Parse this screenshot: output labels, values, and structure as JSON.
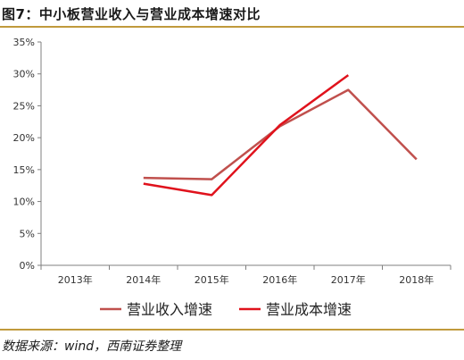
{
  "title": "图7：中小板营业收入与营业成本增速对比",
  "source": "数据来源：wind，西南证券整理",
  "chart_data": {
    "type": "line",
    "categories": [
      "2013年",
      "2014年",
      "2015年",
      "2016年",
      "2017年",
      "2018年"
    ],
    "series": [
      {
        "name": "营业收入增速",
        "color": "#c0504d",
        "values": [
          null,
          13.7,
          13.5,
          21.8,
          27.5,
          16.6
        ]
      },
      {
        "name": "营业成本增速",
        "color": "#e0121c",
        "values": [
          null,
          12.8,
          11.0,
          22.0,
          29.8,
          null
        ]
      }
    ],
    "ylim": [
      0,
      35
    ],
    "yticks": [
      "0%",
      "5%",
      "10%",
      "15%",
      "20%",
      "25%",
      "30%",
      "35%"
    ],
    "legend_position": "bottom",
    "grid": false
  }
}
